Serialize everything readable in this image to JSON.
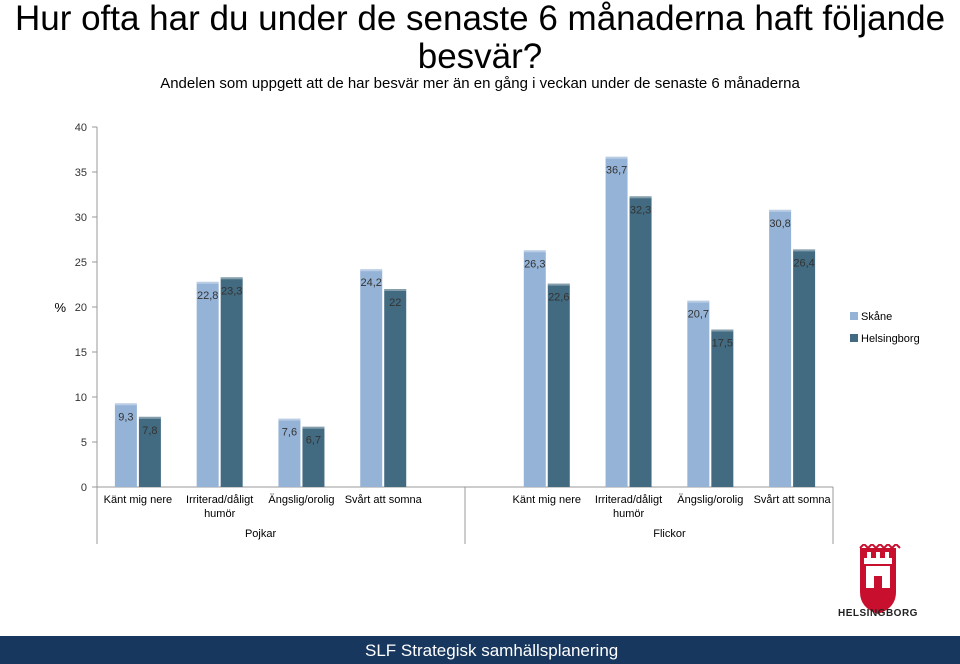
{
  "header": {
    "title": "Hur ofta har du under de senaste 6 månaderna haft följande besvär?",
    "subtitle": "Andelen som uppgett att de har besvär mer än en gång i veckan under de senaste 6 månaderna"
  },
  "footer": {
    "text": "SLF Strategisk samhällsplanering"
  },
  "logo": {
    "name": "helsingborg-crest-icon",
    "text": "HELSINGBORG"
  },
  "colors": {
    "skane": "#95b3d7",
    "helsingborg": "#426a80",
    "footer_bg": "#17375e"
  },
  "chart_data": {
    "type": "bar",
    "title": "",
    "ylabel": "%",
    "ylim": [
      0,
      40
    ],
    "yticks": [
      0,
      5,
      10,
      15,
      20,
      25,
      30,
      35,
      40
    ],
    "grid": false,
    "legend_position": "right",
    "categories": [
      "Känt mig nere",
      "Irriterad/dåligt humör",
      "Ängslig/orolig",
      "Svårt att somna",
      "Känt mig nere",
      "Irriterad/dåligt humör",
      "Ängslig/orolig",
      "Svårt att somna"
    ],
    "groups": [
      {
        "label": "Pojkar",
        "categories": [
          0,
          1,
          2,
          3
        ]
      },
      {
        "label": "Flickor",
        "categories": [
          4,
          5,
          6,
          7
        ]
      }
    ],
    "series": [
      {
        "name": "Skåne",
        "values": [
          9.3,
          22.8,
          7.6,
          24.2,
          26.3,
          36.7,
          20.7,
          30.8
        ],
        "labels": [
          "9,3",
          "22,8",
          "7,6",
          "24,2",
          "26,3",
          "36,7",
          "20,7",
          "30,8"
        ]
      },
      {
        "name": "Helsingborg",
        "values": [
          7.8,
          23.3,
          6.7,
          22,
          22.6,
          32.3,
          17.5,
          26.4
        ],
        "labels": [
          "7,8",
          "23,3",
          "6,7",
          "22",
          "22,6",
          "32,3",
          "17,5",
          "26,4"
        ]
      }
    ]
  }
}
